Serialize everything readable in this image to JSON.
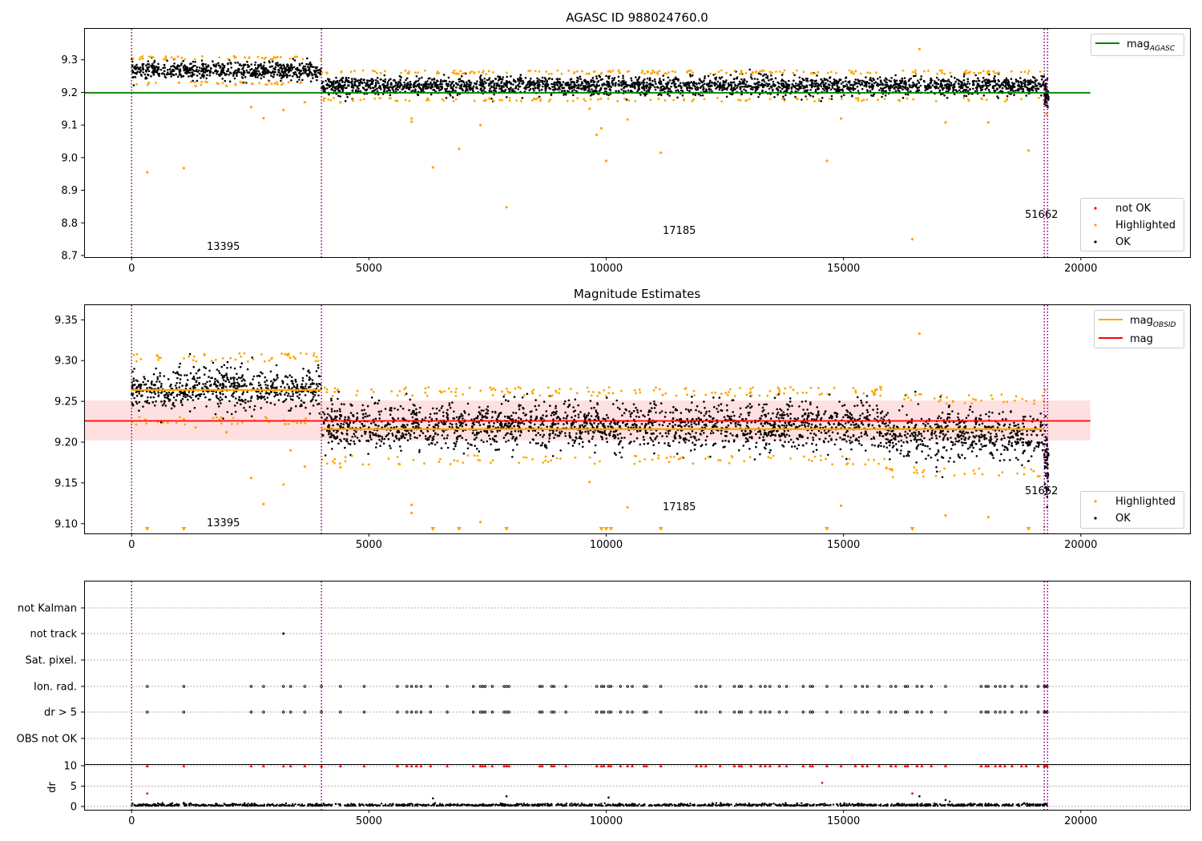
{
  "chart_data": [
    {
      "type": "scatter",
      "title": "AGASC ID 988024760.0",
      "xlim": [
        -1000,
        22300
      ],
      "ylim": [
        8.695,
        9.395
      ],
      "xticks": [
        0,
        5000,
        10000,
        15000,
        20000
      ],
      "yticks": [
        8.7,
        8.8,
        8.9,
        9.0,
        9.1,
        9.2,
        9.3
      ],
      "vlines": [
        0,
        4000,
        19230,
        19300
      ],
      "segments": [
        {
          "x_start": 0,
          "x_end": 4000,
          "mean": 9.267,
          "spread": 0.013
        },
        {
          "x_start": 4000,
          "x_end": 19230,
          "mean": 9.22,
          "spread": 0.014
        },
        {
          "x_start": 19230,
          "x_end": 19320,
          "mean": 9.19,
          "spread": 0.02
        }
      ],
      "hlines": [
        {
          "name": "mag_AGASC",
          "value": 9.199,
          "x_start": -1000,
          "x_end": 20200,
          "color": "#008000"
        }
      ],
      "annotations": [
        {
          "text": "13395",
          "x": 1600,
          "y": 8.715
        },
        {
          "text": "17185",
          "x": 11300,
          "y": 8.765
        },
        {
          "text": "51662",
          "x": 18950,
          "y": 8.815
        }
      ],
      "highlighted": [
        [
          330,
          8.955
        ],
        [
          1100,
          8.968
        ],
        [
          2520,
          9.155
        ],
        [
          2780,
          9.121
        ],
        [
          3200,
          9.146
        ],
        [
          5900,
          9.12
        ],
        [
          5900,
          9.11
        ],
        [
          6350,
          8.97
        ],
        [
          6900,
          9.027
        ],
        [
          7350,
          9.1
        ],
        [
          7900,
          8.848
        ],
        [
          9800,
          9.07
        ],
        [
          9900,
          9.09
        ],
        [
          10000,
          8.99
        ],
        [
          10450,
          9.117
        ],
        [
          11150,
          9.015
        ],
        [
          14650,
          8.99
        ],
        [
          14950,
          9.12
        ],
        [
          16450,
          8.75
        ],
        [
          16600,
          9.333
        ],
        [
          17150,
          9.108
        ],
        [
          18050,
          9.108
        ],
        [
          18900,
          9.022
        ],
        [
          2000,
          9.22
        ],
        [
          1350,
          9.22
        ],
        [
          4400,
          9.17
        ],
        [
          3650,
          9.17
        ],
        [
          9650,
          9.15
        ],
        [
          1000,
          9.23
        ]
      ],
      "series": [
        {
          "name": "not OK",
          "color": "#ff0000"
        },
        {
          "name": "Highlighted",
          "color": "#ffa500"
        },
        {
          "name": "OK",
          "color": "#000000"
        }
      ],
      "legend_upper": [
        {
          "label": "mag",
          "sub": "AGASC",
          "color": "#008000"
        }
      ],
      "legend_lower": [
        {
          "label": "not OK",
          "color": "#ff0000"
        },
        {
          "label": "Highlighted",
          "color": "#ffa500"
        },
        {
          "label": "OK",
          "color": "#000000"
        }
      ],
      "legend_placement": "upper right / lower right"
    },
    {
      "type": "scatter",
      "title": "Magnitude Estimates",
      "xlim": [
        -1000,
        22300
      ],
      "ylim": [
        9.088,
        9.368
      ],
      "xticks": [
        0,
        5000,
        10000,
        15000,
        20000
      ],
      "yticks": [
        9.1,
        9.15,
        9.2,
        9.25,
        9.3,
        9.35
      ],
      "vlines": [
        0,
        4000,
        19230,
        19300
      ],
      "segments": [
        {
          "x_start": 0,
          "x_end": 4000,
          "mean": 9.265,
          "spread": 0.013
        },
        {
          "x_start": 4000,
          "x_end": 15900,
          "mean": 9.22,
          "spread": 0.014
        },
        {
          "x_start": 15900,
          "x_end": 19230,
          "mean": 9.208,
          "spread": 0.015
        },
        {
          "x_start": 19230,
          "x_end": 19320,
          "mean": 9.18,
          "spread": 0.025
        }
      ],
      "obsid_mags": [
        {
          "x_start": 0,
          "x_end": 4000,
          "value": 9.264
        },
        {
          "x_start": 4000,
          "x_end": 19230,
          "value": 9.216
        }
      ],
      "mag": {
        "value": 9.226,
        "band": [
          9.202,
          9.251
        ],
        "x_start": -1000,
        "x_end": 20200
      },
      "annotations": [
        {
          "text": "13395",
          "x": 1600,
          "y": 9.097
        },
        {
          "text": "17185",
          "x": 11300,
          "y": 9.117
        },
        {
          "text": "51662",
          "x": 18950,
          "y": 9.137
        }
      ],
      "highlighted": [
        [
          2520,
          9.156
        ],
        [
          2780,
          9.124
        ],
        [
          3200,
          9.148
        ],
        [
          5900,
          9.123
        ],
        [
          5900,
          9.113
        ],
        [
          7350,
          9.102
        ],
        [
          9650,
          9.151
        ],
        [
          10450,
          9.12
        ],
        [
          14950,
          9.122
        ],
        [
          16600,
          9.333
        ],
        [
          17150,
          9.11
        ],
        [
          18050,
          9.108
        ],
        [
          1350,
          9.218
        ],
        [
          2000,
          9.212
        ],
        [
          3650,
          9.17
        ],
        [
          4400,
          9.169
        ],
        [
          3350,
          9.19
        ],
        [
          1100,
          9.228
        ]
      ],
      "below_axis_markers": [
        330,
        1100,
        6350,
        6900,
        7900,
        9900,
        10000,
        10100,
        11150,
        14650,
        16450,
        18900
      ],
      "legend_upper": [
        {
          "label": "mag",
          "sub": "OBSID",
          "color": "#ffa500"
        },
        {
          "label": "mag",
          "sub": "",
          "color": "#ff0000"
        }
      ],
      "legend_lower": [
        {
          "label": "Highlighted",
          "color": "#ffa500"
        },
        {
          "label": "OK",
          "color": "#000000"
        }
      ],
      "legend_placement": "upper right / lower right"
    },
    {
      "type": "scatter",
      "title": "",
      "xlim": [
        -1000,
        22300
      ],
      "xticks": [
        0,
        5000,
        10000,
        15000,
        20000
      ],
      "vlines": [
        0,
        4000,
        19230,
        19300
      ],
      "flag_labels": [
        "not Kalman",
        "not track",
        "Sat. pixel.",
        "Ion. rad.",
        "dr > 5",
        "OBS not OK"
      ],
      "not_track_x": [
        3200
      ],
      "flag_x": [
        330,
        1100,
        2520,
        2780,
        3200,
        3350,
        3650,
        4000,
        4400,
        4900,
        5600,
        5800,
        5900,
        6000,
        6100,
        6300,
        6650,
        7200,
        7350,
        7400,
        7450,
        7600,
        7850,
        7900,
        7950,
        8600,
        8650,
        8850,
        8900,
        9150,
        9800,
        9900,
        9950,
        10050,
        10100,
        10300,
        10450,
        10550,
        10800,
        10850,
        11150,
        11900,
        12000,
        12100,
        12400,
        12700,
        12800,
        12850,
        13050,
        13250,
        13350,
        13450,
        13650,
        13800,
        14150,
        14300,
        14350,
        14650,
        14950,
        15250,
        15400,
        15500,
        15750,
        16000,
        16100,
        16300,
        16350,
        16550,
        16650,
        16850,
        17150,
        17900,
        18000,
        18050,
        18200,
        18300,
        18400,
        18550,
        18750,
        18850,
        19100,
        19230,
        19260,
        19290
      ],
      "dr_ylim": [
        -0.8,
        10.2
      ],
      "dr_yticks": [
        0,
        5,
        10
      ],
      "ylabel": "dr",
      "dr_outliers": [
        [
          330,
          3.2
        ],
        [
          1100,
          0.9
        ],
        [
          6350,
          2.0
        ],
        [
          7900,
          2.5
        ],
        [
          10050,
          2.2
        ],
        [
          14550,
          5.8
        ],
        [
          16450,
          3.2
        ],
        [
          16600,
          2.5
        ],
        [
          17150,
          1.6
        ]
      ]
    }
  ]
}
